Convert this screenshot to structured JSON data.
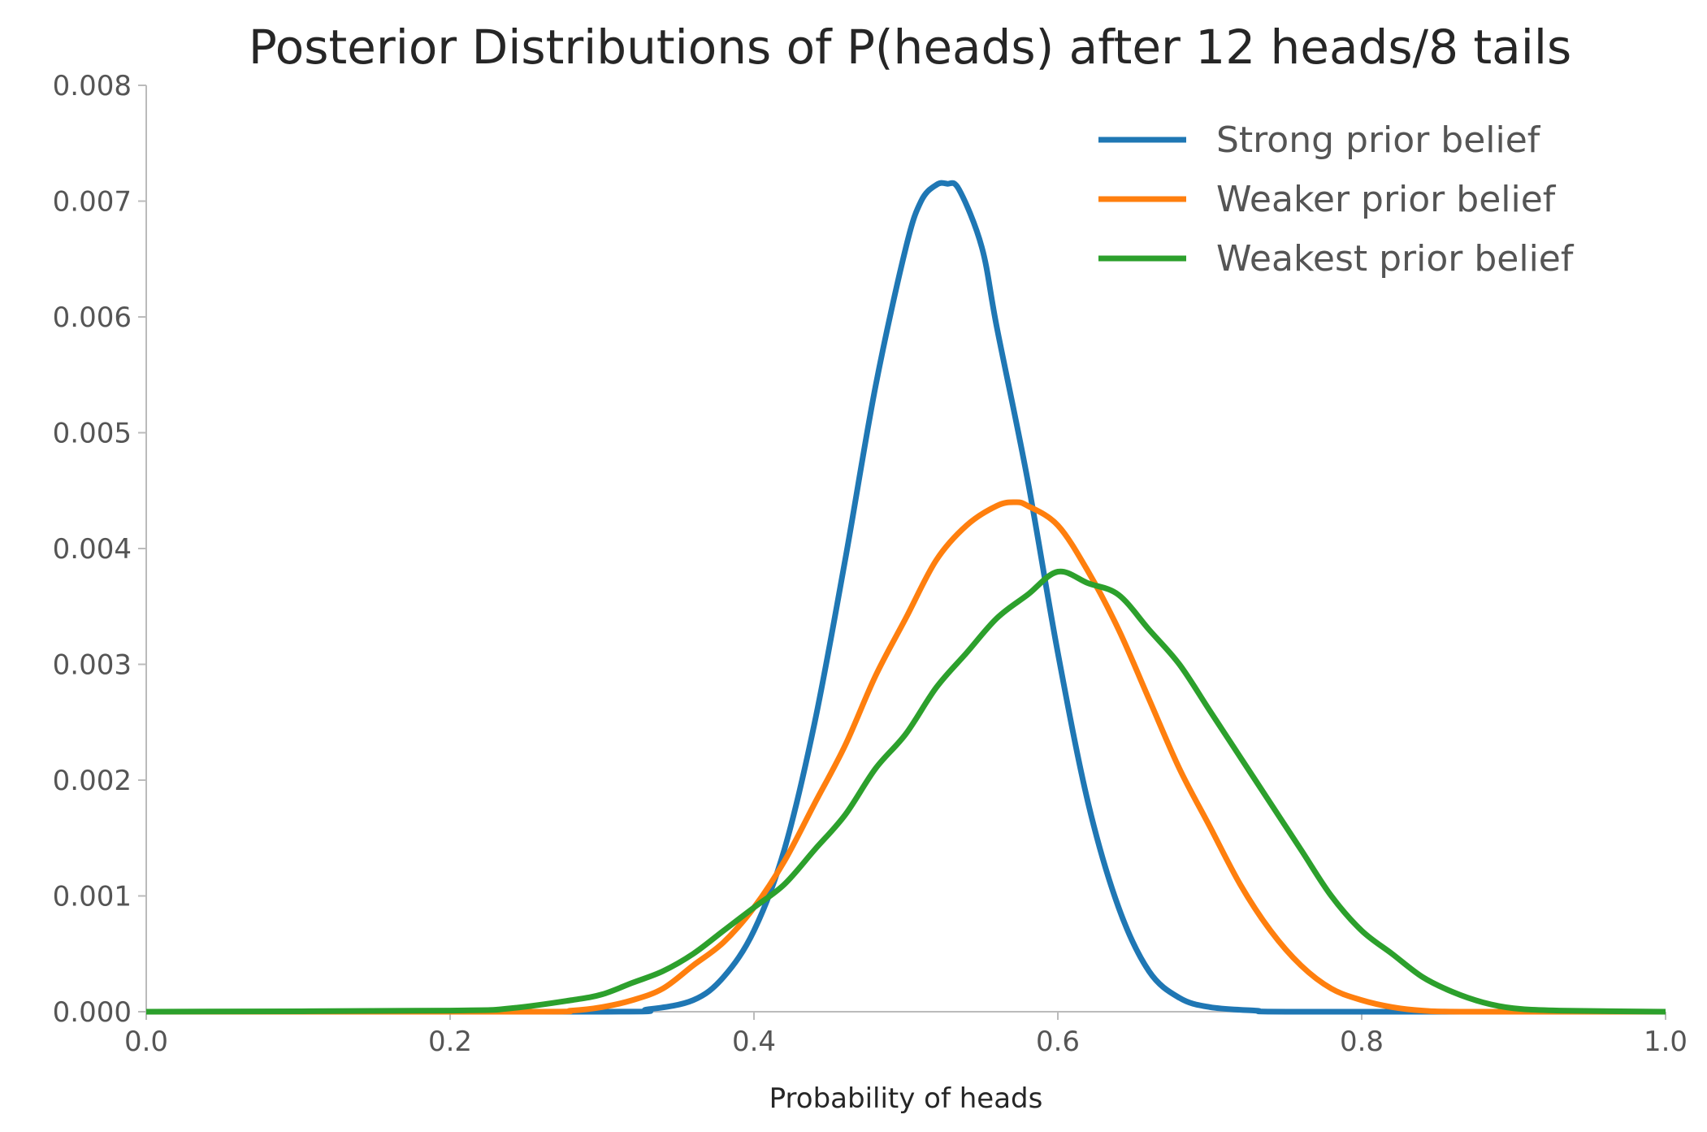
{
  "chart_data": {
    "type": "line",
    "title": "Posterior Distributions of P(heads) after 12 heads/8 tails",
    "xlabel": "Probability of heads",
    "ylabel": "",
    "xlim": [
      0.0,
      1.0
    ],
    "ylim": [
      0.0,
      0.008
    ],
    "x_ticks": [
      "0.0",
      "0.2",
      "0.4",
      "0.6",
      "0.8",
      "1.0"
    ],
    "y_ticks": [
      "0.000",
      "0.001",
      "0.002",
      "0.003",
      "0.004",
      "0.005",
      "0.006",
      "0.007",
      "0.008"
    ],
    "grid": false,
    "legend_position": "top-right",
    "series": [
      {
        "name": "Strong prior belief",
        "color": "#1f77b4",
        "x": [
          0.0,
          0.3,
          0.33,
          0.36,
          0.38,
          0.4,
          0.42,
          0.44,
          0.46,
          0.48,
          0.5,
          0.51,
          0.52,
          0.527,
          0.535,
          0.55,
          0.56,
          0.58,
          0.6,
          0.62,
          0.64,
          0.66,
          0.68,
          0.7,
          0.73,
          0.76,
          1.0
        ],
        "y": [
          0.0,
          0.0,
          2e-05,
          0.0001,
          0.0003,
          0.0007,
          0.0014,
          0.0025,
          0.0039,
          0.0054,
          0.0066,
          0.007,
          0.00714,
          0.00715,
          0.0071,
          0.0066,
          0.0059,
          0.0046,
          0.0031,
          0.0018,
          0.0009,
          0.00035,
          0.00012,
          4e-05,
          1e-05,
          0.0,
          0.0
        ]
      },
      {
        "name": "Weaker prior belief",
        "color": "#ff7f0e",
        "x": [
          0.0,
          0.25,
          0.28,
          0.3,
          0.32,
          0.34,
          0.36,
          0.38,
          0.4,
          0.42,
          0.44,
          0.46,
          0.48,
          0.5,
          0.52,
          0.54,
          0.56,
          0.572,
          0.58,
          0.6,
          0.62,
          0.64,
          0.66,
          0.68,
          0.7,
          0.72,
          0.74,
          0.76,
          0.78,
          0.8,
          0.82,
          0.84,
          0.87,
          1.0
        ],
        "y": [
          0.0,
          0.0,
          1e-05,
          4e-05,
          0.0001,
          0.0002,
          0.0004,
          0.0006,
          0.0009,
          0.0013,
          0.0018,
          0.0023,
          0.0029,
          0.0034,
          0.0039,
          0.0042,
          0.00437,
          0.0044,
          0.00437,
          0.0042,
          0.0038,
          0.0033,
          0.0027,
          0.0021,
          0.0016,
          0.0011,
          0.0007,
          0.0004,
          0.0002,
          0.0001,
          4e-05,
          1e-05,
          0.0,
          0.0
        ]
      },
      {
        "name": "Weakest prior belief",
        "color": "#2ca02c",
        "x": [
          0.0,
          0.2,
          0.24,
          0.28,
          0.3,
          0.32,
          0.34,
          0.36,
          0.38,
          0.4,
          0.42,
          0.44,
          0.46,
          0.48,
          0.5,
          0.52,
          0.54,
          0.56,
          0.58,
          0.6,
          0.62,
          0.64,
          0.66,
          0.68,
          0.7,
          0.72,
          0.74,
          0.76,
          0.78,
          0.8,
          0.82,
          0.84,
          0.86,
          0.88,
          0.9,
          0.93,
          1.0
        ],
        "y": [
          0.0,
          1e-05,
          3e-05,
          0.0001,
          0.00015,
          0.00025,
          0.00035,
          0.0005,
          0.0007,
          0.0009,
          0.0011,
          0.0014,
          0.0017,
          0.0021,
          0.0024,
          0.0028,
          0.0031,
          0.0034,
          0.0036,
          0.0038,
          0.0037,
          0.0036,
          0.0033,
          0.003,
          0.0026,
          0.0022,
          0.0018,
          0.0014,
          0.001,
          0.0007,
          0.0005,
          0.0003,
          0.00017,
          8e-05,
          3e-05,
          1e-05,
          0.0
        ]
      }
    ]
  }
}
